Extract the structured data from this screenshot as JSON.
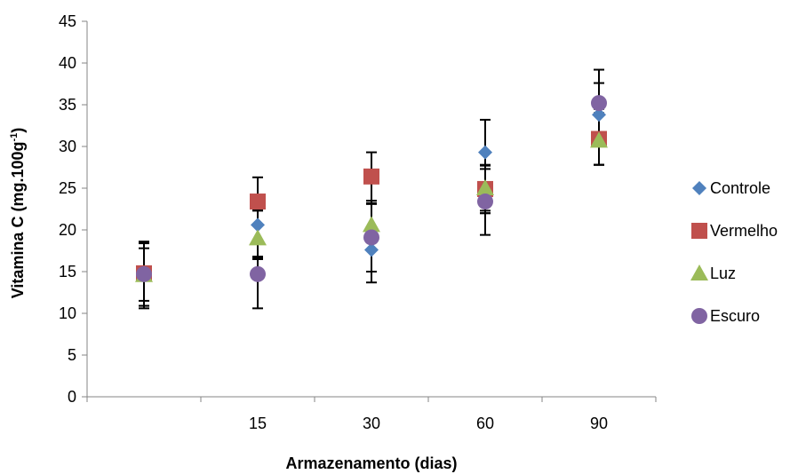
{
  "chart_data": {
    "type": "scatter",
    "title": "",
    "xlabel": "Armazenamento (dias)",
    "ylabel_main": "Vitamina C (mg.100g",
    "ylabel_sup": "-1",
    "ylabel_end": ")",
    "categories": [
      "",
      "15",
      "30",
      "60",
      "90"
    ],
    "ylim": [
      0,
      45
    ],
    "yticks": [
      0,
      5,
      10,
      15,
      20,
      25,
      30,
      35,
      40,
      45
    ],
    "grid": false,
    "legend_position": "right",
    "series": [
      {
        "name": "Controle",
        "marker": "diamond",
        "color": "#4F81BD",
        "values": [
          14.7,
          20.6,
          17.6,
          29.3,
          33.8
        ],
        "err_low": [
          11.5,
          16.5,
          13.7,
          19.4,
          27.8
        ],
        "err_high": [
          17.8,
          22.5,
          23.5,
          33.2,
          39.2
        ]
      },
      {
        "name": "Vermelho",
        "marker": "square",
        "color": "#C0504D",
        "values": [
          14.8,
          23.4,
          26.4,
          24.9,
          30.9
        ],
        "err_low": [
          10.6,
          16.5,
          23.1,
          22.0,
          27.8
        ],
        "err_high": [
          18.6,
          26.3,
          29.3,
          27.7,
          34.0
        ]
      },
      {
        "name": "Luz",
        "marker": "triangle",
        "color": "#9BBB59",
        "values": [
          14.6,
          19.0,
          20.6,
          25.0,
          30.7
        ],
        "err_low": [
          10.9,
          16.8,
          17.7,
          22.0,
          27.8
        ],
        "err_high": [
          18.4,
          22.3,
          23.2,
          27.8,
          34.5
        ]
      },
      {
        "name": "Escuro",
        "marker": "circle",
        "color": "#8064A2",
        "values": [
          14.7,
          14.7,
          19.1,
          23.4,
          35.2
        ],
        "err_low": [
          10.9,
          10.6,
          15.0,
          22.3,
          30.9
        ],
        "err_high": [
          18.4,
          16.7,
          23.2,
          27.3,
          37.6
        ]
      }
    ]
  }
}
